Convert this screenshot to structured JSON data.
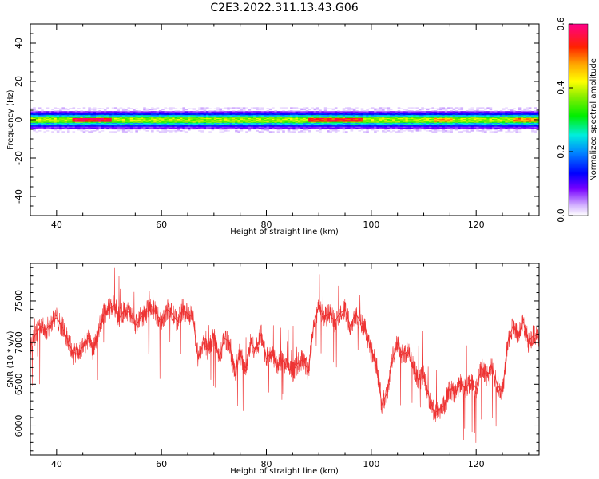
{
  "figure": {
    "title": "C2E3.2022.311.13.43.G06"
  },
  "chart_data": [
    {
      "type": "heatmap",
      "xlabel": "Height of straight line (km)",
      "ylabel": "Frequency (Hz)",
      "xlim": [
        35,
        132
      ],
      "ylim": [
        -50,
        50
      ],
      "xticks": [
        40,
        60,
        80,
        100,
        120
      ],
      "yticks": [
        -40,
        -20,
        0,
        20,
        40
      ],
      "band": {
        "center_hz": 0,
        "halfwidth_hz": 4.5
      },
      "peak_regions": [
        {
          "x_range": [
            43,
            50
          ],
          "amplitude": 0.6
        },
        {
          "x_range": [
            88,
            98
          ],
          "amplitude": 0.58
        },
        {
          "x_range": [
            112,
            115
          ],
          "amplitude": 0.5
        },
        {
          "x_range": [
            127,
            131
          ],
          "amplitude": 0.52
        }
      ],
      "colorbar": {
        "label": "Normalized spectral amplitude",
        "range": [
          0,
          0.6
        ],
        "ticks": [
          0.0,
          0.2,
          0.4,
          0.6
        ],
        "tick_labels": [
          "0.0",
          "0.2",
          "0.4",
          "0.6"
        ]
      }
    },
    {
      "type": "line",
      "xlabel": "Height of straight line (km)",
      "ylabel": "SNR (10 * v/v)",
      "xlim": [
        35,
        132
      ],
      "ylim": [
        5650,
        7950
      ],
      "xticks": [
        40,
        60,
        80,
        100,
        120
      ],
      "yticks": [
        6000,
        6500,
        7000,
        7500
      ],
      "color": "#ee3333",
      "series": [
        {
          "x": [
            35,
            36,
            37,
            38,
            39,
            40,
            41,
            42,
            43,
            44,
            45,
            46,
            47,
            48,
            49,
            50,
            51,
            52,
            53,
            54,
            55,
            56,
            57,
            58,
            59,
            60,
            61,
            62,
            63,
            64,
            65,
            66,
            67,
            68,
            69,
            70,
            71,
            72,
            73,
            74,
            75,
            76,
            77,
            78,
            79,
            80,
            81,
            82,
            83,
            84,
            85,
            86,
            87,
            88,
            89,
            90,
            91,
            92,
            93,
            94,
            95,
            96,
            97,
            98,
            99,
            100,
            101,
            102,
            103,
            104,
            105,
            106,
            107,
            108,
            109,
            110,
            111,
            112,
            113,
            114,
            115,
            116,
            117,
            118,
            119,
            120,
            121,
            122,
            123,
            124,
            125,
            126,
            127,
            128,
            129,
            130,
            131,
            132
          ],
          "y": [
            6950,
            7100,
            7200,
            7150,
            7250,
            7300,
            7200,
            7050,
            6900,
            6850,
            6950,
            7050,
            6900,
            7150,
            7350,
            7400,
            7450,
            7300,
            7400,
            7350,
            7200,
            7300,
            7350,
            7450,
            7350,
            7250,
            7400,
            7350,
            7250,
            7400,
            7350,
            7300,
            6800,
            7000,
            6900,
            7100,
            6800,
            7050,
            7000,
            6600,
            6900,
            6650,
            7000,
            6900,
            7100,
            6800,
            6900,
            6700,
            6800,
            6700,
            6650,
            6750,
            6800,
            6650,
            7200,
            7450,
            7300,
            7350,
            7250,
            7350,
            7400,
            7200,
            7350,
            7250,
            7150,
            6900,
            6750,
            6250,
            6400,
            6800,
            7000,
            6850,
            6900,
            6700,
            6550,
            6600,
            6350,
            6150,
            6200,
            6250,
            6450,
            6400,
            6500,
            6450,
            6550,
            6450,
            6700,
            6600,
            6700,
            6500,
            6400,
            7000,
            7200,
            7100,
            7250,
            7000,
            7100,
            7050
          ]
        }
      ]
    }
  ]
}
